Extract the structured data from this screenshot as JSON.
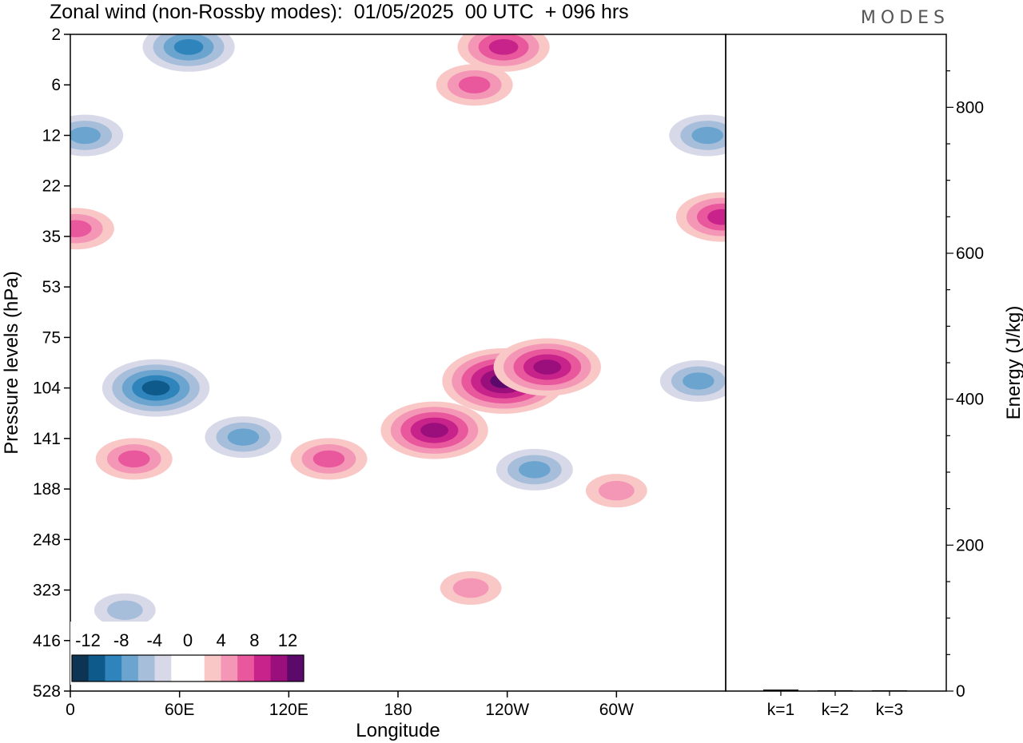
{
  "title": "Zonal wind (non-Rossby modes):  01/05/2025  00 UTC  + 096 hrs",
  "logo": "MODES",
  "colors": {
    "neg": [
      "#0d3553",
      "#0e5a8a",
      "#2e84bb",
      "#6aa4cf",
      "#a7bedb",
      "#d8d9e8"
    ],
    "zero": "#ffffff",
    "pos": [
      "#f9c8c6",
      "#f497b6",
      "#e9579c",
      "#c8238a",
      "#9a0f7c",
      "#5b0a6b"
    ]
  },
  "chart_data": [
    {
      "type": "heatmap",
      "title": "Zonal wind (non-Rossby modes):  01/05/2025  00 UTC  + 096 hrs",
      "xlabel": "Longitude",
      "ylabel": "Pressure levels (hPa)",
      "x_ticks": [
        "0",
        "60E",
        "120E",
        "180",
        "120W",
        "60W"
      ],
      "x_tick_deg": [
        0,
        60,
        120,
        180,
        240,
        300
      ],
      "xlim": [
        0,
        360
      ],
      "y_ticks": [
        "2",
        "6",
        "12",
        "22",
        "35",
        "53",
        "75",
        "104",
        "141",
        "188",
        "248",
        "323",
        "416",
        "528"
      ],
      "colorbar": {
        "labels": [
          "-12",
          "-8",
          "-4",
          "0",
          "4",
          "8",
          "12"
        ],
        "levels": [
          -12,
          -10,
          -8,
          -6,
          -4,
          -2,
          2,
          4,
          6,
          8,
          10,
          12
        ]
      },
      "features": [
        {
          "lon": 65,
          "p": 3,
          "value": -7
        },
        {
          "lon": 8,
          "p": 12,
          "value": -5
        },
        {
          "lon": 350,
          "p": 12,
          "value": -5
        },
        {
          "lon": 238,
          "p": 3,
          "value": 6
        },
        {
          "lon": 222,
          "p": 6,
          "value": 5
        },
        {
          "lon": 3,
          "p": 33,
          "value": 5
        },
        {
          "lon": 358,
          "p": 30,
          "value": 7
        },
        {
          "lon": 47,
          "p": 104,
          "value": -8
        },
        {
          "lon": 238,
          "p": 100,
          "value": 10
        },
        {
          "lon": 262,
          "p": 92,
          "value": 8
        },
        {
          "lon": 200,
          "p": 135,
          "value": 8
        },
        {
          "lon": 142,
          "p": 160,
          "value": 5
        },
        {
          "lon": 345,
          "p": 100,
          "value": -5
        },
        {
          "lon": 95,
          "p": 140,
          "value": -5
        },
        {
          "lon": 255,
          "p": 170,
          "value": -5
        },
        {
          "lon": 35,
          "p": 160,
          "value": 4
        },
        {
          "lon": 300,
          "p": 190,
          "value": 3
        },
        {
          "lon": 220,
          "p": 320,
          "value": 3
        },
        {
          "lon": 30,
          "p": 360,
          "value": -3
        }
      ]
    },
    {
      "type": "bar",
      "categories": [
        "k=1",
        "k=2",
        "k=3"
      ],
      "values": [
        2,
        1,
        1
      ],
      "ylabel": "Energy (J/kg)",
      "ylim": [
        0,
        900
      ],
      "y_ticks": [
        0,
        200,
        400,
        600,
        800
      ]
    }
  ]
}
